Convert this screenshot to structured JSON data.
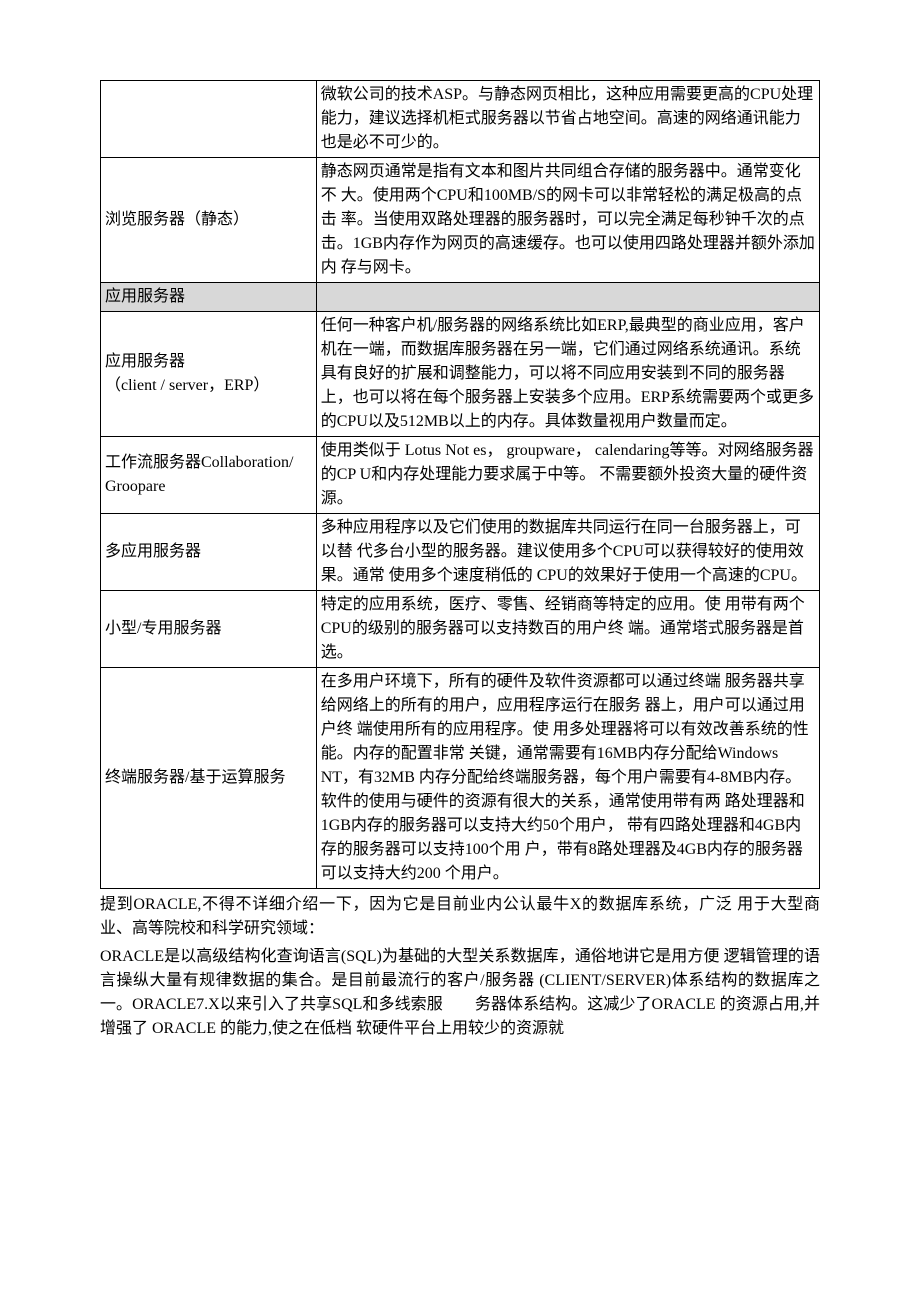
{
  "table": {
    "rows": [
      {
        "left": "",
        "right": "微软公司的技术ASP。与静态网页相比，这种应用需要更高的CPU处理能力，建议选择机柜式服务器以节省占地空间。高速的网络通讯能力也是必不可少的。",
        "header": false
      },
      {
        "left": "浏览服务器（静态）",
        "right": "静态网页通常是指有文本和图片共同组合存储的服务器中。通常变化不 大。使用两个CPU和100MB/S的网卡可以非常轻松的满足极高的点击 率。当使用双路处理器的服务器时，可以完全满足每秒钟千次的点击。1GB内存作为网页的高速缓存。也可以使用四路处理器并额外添加内 存与网卡。",
        "header": false
      },
      {
        "left": "应用服务器",
        "right": "",
        "header": true
      },
      {
        "left": "应用服务器\n（client / server，ERP）",
        "right": "任何一种客户机/服务器的网络系统比如ERP,最典型的商业应用，客户机在一端，而数据库服务器在另一端，它们通过网络系统通讯。系统具有良好的扩展和调整能力，可以将不同应用安装到不同的服务器上，也可以将在每个服务器上安装多个应用。ERP系统需要两个或更多的CPU以及512MB以上的内存。具体数量视用户数量而定。",
        "header": false
      },
      {
        "left": "工作流服务器Collaboration/ Groopare",
        "right": "使用类似于 Lotus Not es， groupware， calendaring等等。对网络服务器的CP U和内存处理能力要求属于中等。 不需要额外投资大量的硬件资源。",
        "header": false
      },
      {
        "left": "多应用服务器",
        "right": "多种应用程序以及它们使用的数据库共同运行在同一台服务器上，可以替 代多台小型的服务器。建议使用多个CPU可以获得较好的使用效果。通常 使用多个速度稍低的 CPU的效果好于使用一个高速的CPU。",
        "header": false
      },
      {
        "left": "小型/专用服务器",
        "right": "特定的应用系统，医疗、零售、经销商等特定的应用。使 用带有两个CPU的级别的服务器可以支持数百的用户终 端。通常塔式服务器是首 选。",
        "header": false
      },
      {
        "left": "终端服务器/基于运算服务",
        "right": "在多用户环境下，所有的硬件及软件资源都可以通过终端 服务器共享给网络上的所有的用户，应用程序运行在服务 器上，用户可以通过用户终 端使用所有的应用程序。使 用多处理器将可以有效改善系统的性能。内存的配置非常 关键，通常需要有16MB内存分配给Windows NT，有32MB 内存分配给终端服务器，每个用户需要有4-8MB内存。 软件的使用与硬件的资源有很大的关系，通常使用带有两 路处理器和1GB内存的服务器可以支持大约50个用户， 带有四路处理器和4GB内存的服务器可以支持100个用 户，带有8路处理器及4GB内存的服务器可以支持大约200 个用户。",
        "header": false
      }
    ]
  },
  "paragraphs": [
    "提到ORACLE,不得不详细介绍一下，因为它是目前业内公认最牛X的数据库系统，广泛 用于大型商业、高等院校和科学研究领域：",
    "ORACLE是以高级结构化查询语言(SQL)为基础的大型关系数据库，通俗地讲它是用方便 逻辑管理的语言操纵大量有规律数据的集合。是目前最流行的客户/服务器 (CLIENT/SERVER)体系结构的数据库之一。ORACLE7.X以来引入了共享SQL和多线索服　　务器体系结构。这减少了ORACLE 的资源占用,并增强了 ORACLE 的能力,使之在低档 软硬件平台上用较少的资源就"
  ]
}
